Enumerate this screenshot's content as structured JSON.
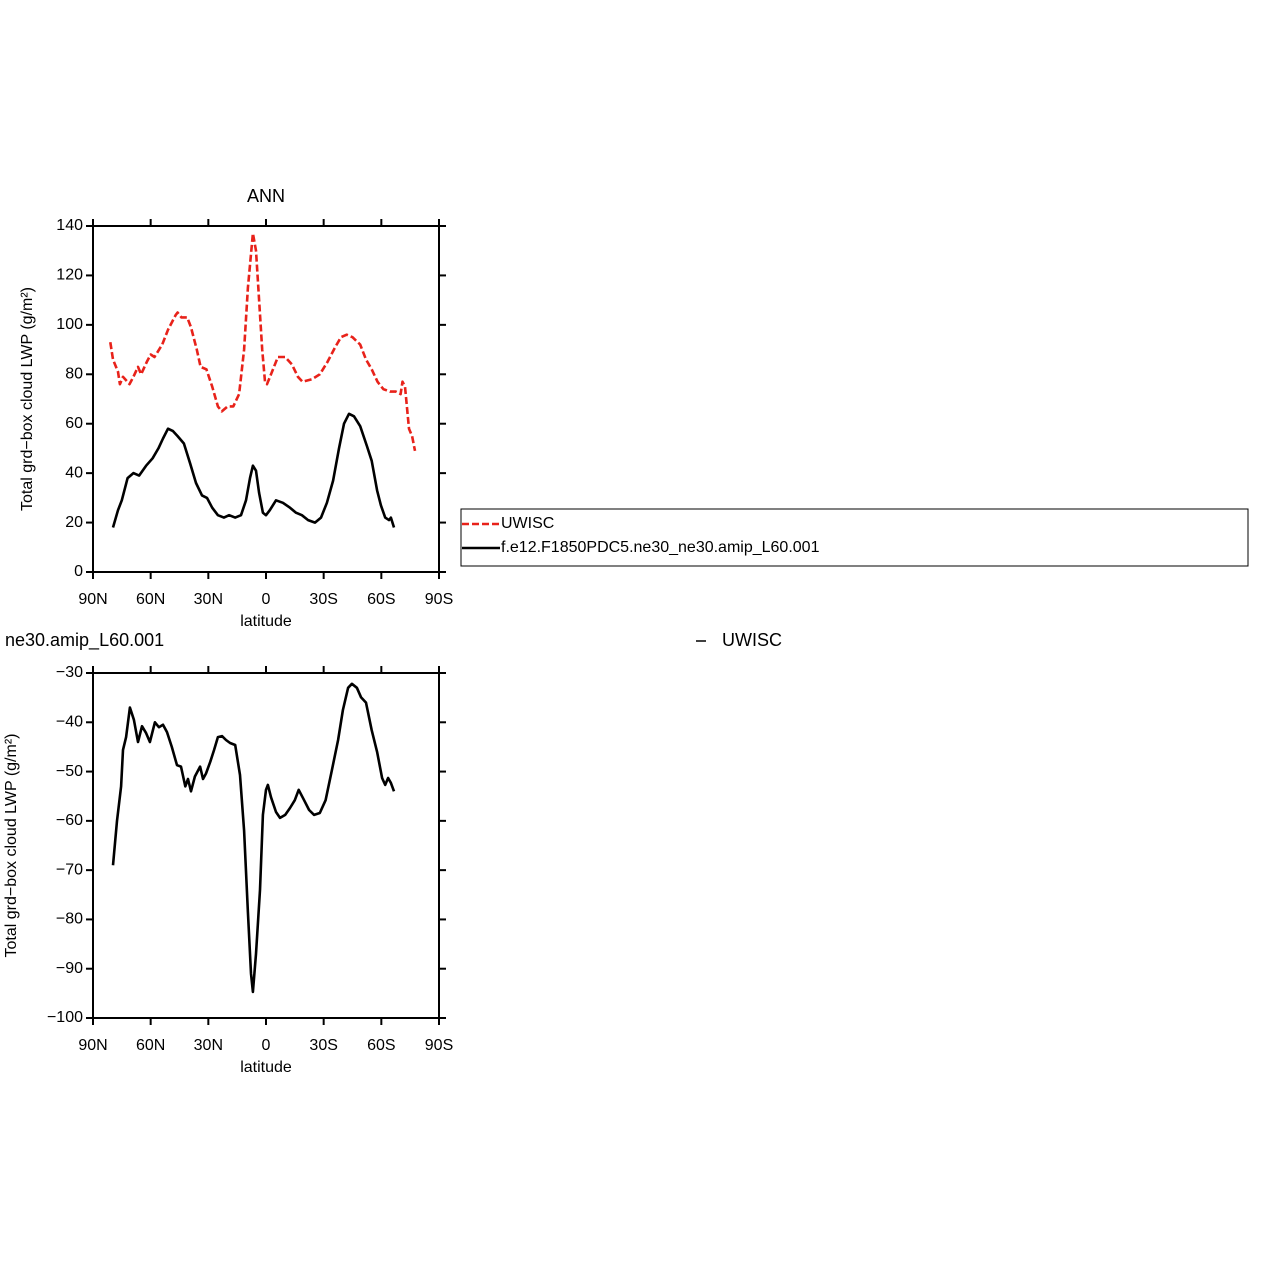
{
  "chart_data": [
    {
      "type": "line",
      "title": "ANN",
      "xlabel": "latitude",
      "ylabel": "Total grd−box cloud LWP (g/m²)",
      "xlim": [
        90,
        -90
      ],
      "xticks": [
        {
          "value": 90,
          "label": "90N"
        },
        {
          "value": 60,
          "label": "60N"
        },
        {
          "value": 30,
          "label": "30N"
        },
        {
          "value": 0,
          "label": "0"
        },
        {
          "value": -30,
          "label": "30S"
        },
        {
          "value": -60,
          "label": "60S"
        },
        {
          "value": -90,
          "label": "90S"
        }
      ],
      "ylim": [
        0,
        140
      ],
      "yticks": [
        0,
        20,
        40,
        60,
        80,
        100,
        120,
        140
      ],
      "series": [
        {
          "name": "UWISC",
          "color": "#e8221a",
          "dashed": true,
          "x": [
            81,
            79.6,
            77,
            76,
            74.4,
            71,
            69,
            66.6,
            65,
            62,
            60,
            58,
            54,
            51,
            47,
            46,
            44,
            41,
            39,
            36,
            34,
            31,
            28,
            25,
            23,
            20,
            17,
            14,
            11.4,
            9.4,
            6.8,
            5.2,
            3.6,
            2,
            0.5,
            -0.5,
            -2.6,
            -6.2,
            -10,
            -13.5,
            -16.6,
            -19,
            -24,
            -28,
            -32,
            -36,
            -39,
            -42,
            -45,
            -49,
            -52,
            -55,
            -58,
            -61,
            -64.5,
            -67.6,
            -70,
            -71,
            -72.3,
            -74.4,
            -76,
            -77.5
          ],
          "values": [
            93,
            86,
            81,
            76,
            79,
            76,
            79,
            83,
            80,
            85,
            88,
            87,
            92,
            98,
            104,
            105,
            103,
            103,
            99,
            90,
            83,
            82,
            75,
            67,
            65,
            67,
            67,
            72,
            90,
            115,
            137,
            130,
            110,
            90,
            77,
            76,
            80,
            87,
            87,
            84,
            79,
            77,
            78,
            80,
            85,
            91,
            95,
            96,
            95,
            92,
            86,
            82,
            77,
            74,
            73,
            73,
            72,
            77,
            75,
            58,
            55,
            49
          ]
        },
        {
          "name": "f.e12.F1850PDC5.ne30_ne30.amip_L60.001",
          "color": "#000000",
          "dashed": false,
          "x": [
            79.6,
            77,
            75,
            72,
            69,
            66,
            62.4,
            59,
            56,
            53.6,
            51,
            48.4,
            46,
            42.7,
            39.5,
            36.4,
            33.3,
            30.7,
            28,
            25,
            21.9,
            19.2,
            16,
            13,
            10.4,
            8.3,
            6.8,
            5.2,
            3.6,
            1.6,
            0,
            -2,
            -5.2,
            -8.8,
            -12.5,
            -15.6,
            -18.7,
            -21.9,
            -25.5,
            -28.6,
            -31.7,
            -34.9,
            -38,
            -40.6,
            -43.2,
            -45.8,
            -49,
            -52.5,
            -55,
            -57.8,
            -59.8,
            -62,
            -64,
            -65,
            -66.6
          ],
          "values": [
            18,
            25,
            29,
            38,
            40,
            39,
            43,
            46,
            50,
            54,
            58,
            57,
            55,
            52,
            44,
            36,
            31,
            30,
            26,
            23,
            22,
            23,
            22,
            23,
            29,
            38,
            43,
            41,
            32,
            24,
            23,
            25,
            29,
            28,
            26,
            24,
            23,
            21,
            20,
            22,
            28,
            37,
            50,
            60,
            64,
            63,
            59,
            51,
            45,
            33,
            27,
            22,
            21,
            22,
            18
          ]
        }
      ]
    },
    {
      "type": "line",
      "title": "ne30.amip_L60.001",
      "xlabel": "latitude",
      "ylabel": "Total grd−box cloud LWP (g/m²)",
      "xlim": [
        90,
        -90
      ],
      "xticks": [
        {
          "value": 90,
          "label": "90N"
        },
        {
          "value": 60,
          "label": "60N"
        },
        {
          "value": 30,
          "label": "30N"
        },
        {
          "value": 0,
          "label": "0"
        },
        {
          "value": -30,
          "label": "30S"
        },
        {
          "value": -60,
          "label": "60S"
        },
        {
          "value": -90,
          "label": "90S"
        }
      ],
      "ylim": [
        -100,
        -30
      ],
      "yticks": [
        {
          "value": -100,
          "label": "−100"
        },
        {
          "value": -90,
          "label": "−90"
        },
        {
          "value": -80,
          "label": "−80"
        },
        {
          "value": -70,
          "label": "−70"
        },
        {
          "value": -60,
          "label": "−60"
        },
        {
          "value": -50,
          "label": "−50"
        },
        {
          "value": -40,
          "label": "−40"
        },
        {
          "value": -30,
          "label": "−30"
        }
      ],
      "series": [
        {
          "name": "UWISC",
          "color": "#000000",
          "dashed": false,
          "x": [
            79.6,
            77.5,
            75.4,
            74.4,
            72.8,
            70.8,
            68.7,
            66.6,
            64.5,
            62.4,
            60.4,
            57.8,
            55.7,
            53.6,
            51.5,
            49,
            46.3,
            44.2,
            42,
            40.6,
            39,
            37,
            34.3,
            32.8,
            31.2,
            29,
            27,
            25,
            22.9,
            20.8,
            18.7,
            16,
            13.5,
            11.4,
            9.4,
            7.8,
            6.8,
            5.2,
            3.1,
            1.6,
            0,
            -1,
            -2.6,
            -5.2,
            -7.3,
            -10,
            -12.5,
            -15,
            -17,
            -19.8,
            -22.4,
            -25,
            -28,
            -31,
            -34.3,
            -37.5,
            -40,
            -42.7,
            -44.7,
            -47.3,
            -49.4,
            -52,
            -55,
            -57.8,
            -60.4,
            -62,
            -63.5,
            -65,
            -66.6
          ],
          "values": [
            -69,
            -60,
            -53,
            -45.6,
            -43,
            -37,
            -39.5,
            -44,
            -40.8,
            -42.2,
            -44,
            -40,
            -41,
            -40.5,
            -42,
            -45,
            -48.7,
            -49,
            -53,
            -51.5,
            -54,
            -51,
            -49,
            -51.5,
            -50.4,
            -48,
            -45.6,
            -43,
            -42.8,
            -43.6,
            -44.2,
            -44.6,
            -50.7,
            -62,
            -78.5,
            -91,
            -94.7,
            -87,
            -74,
            -58.8,
            -53.7,
            -52.7,
            -55.2,
            -58.2,
            -59.4,
            -58.8,
            -57.4,
            -55.8,
            -53.7,
            -55.8,
            -57.8,
            -58.8,
            -58.4,
            -55.8,
            -49.7,
            -43.6,
            -37.5,
            -33,
            -32.2,
            -33,
            -34.9,
            -36,
            -41.6,
            -46,
            -51.3,
            -52.7,
            -51.3,
            -52.3,
            -54
          ]
        }
      ]
    }
  ]
}
